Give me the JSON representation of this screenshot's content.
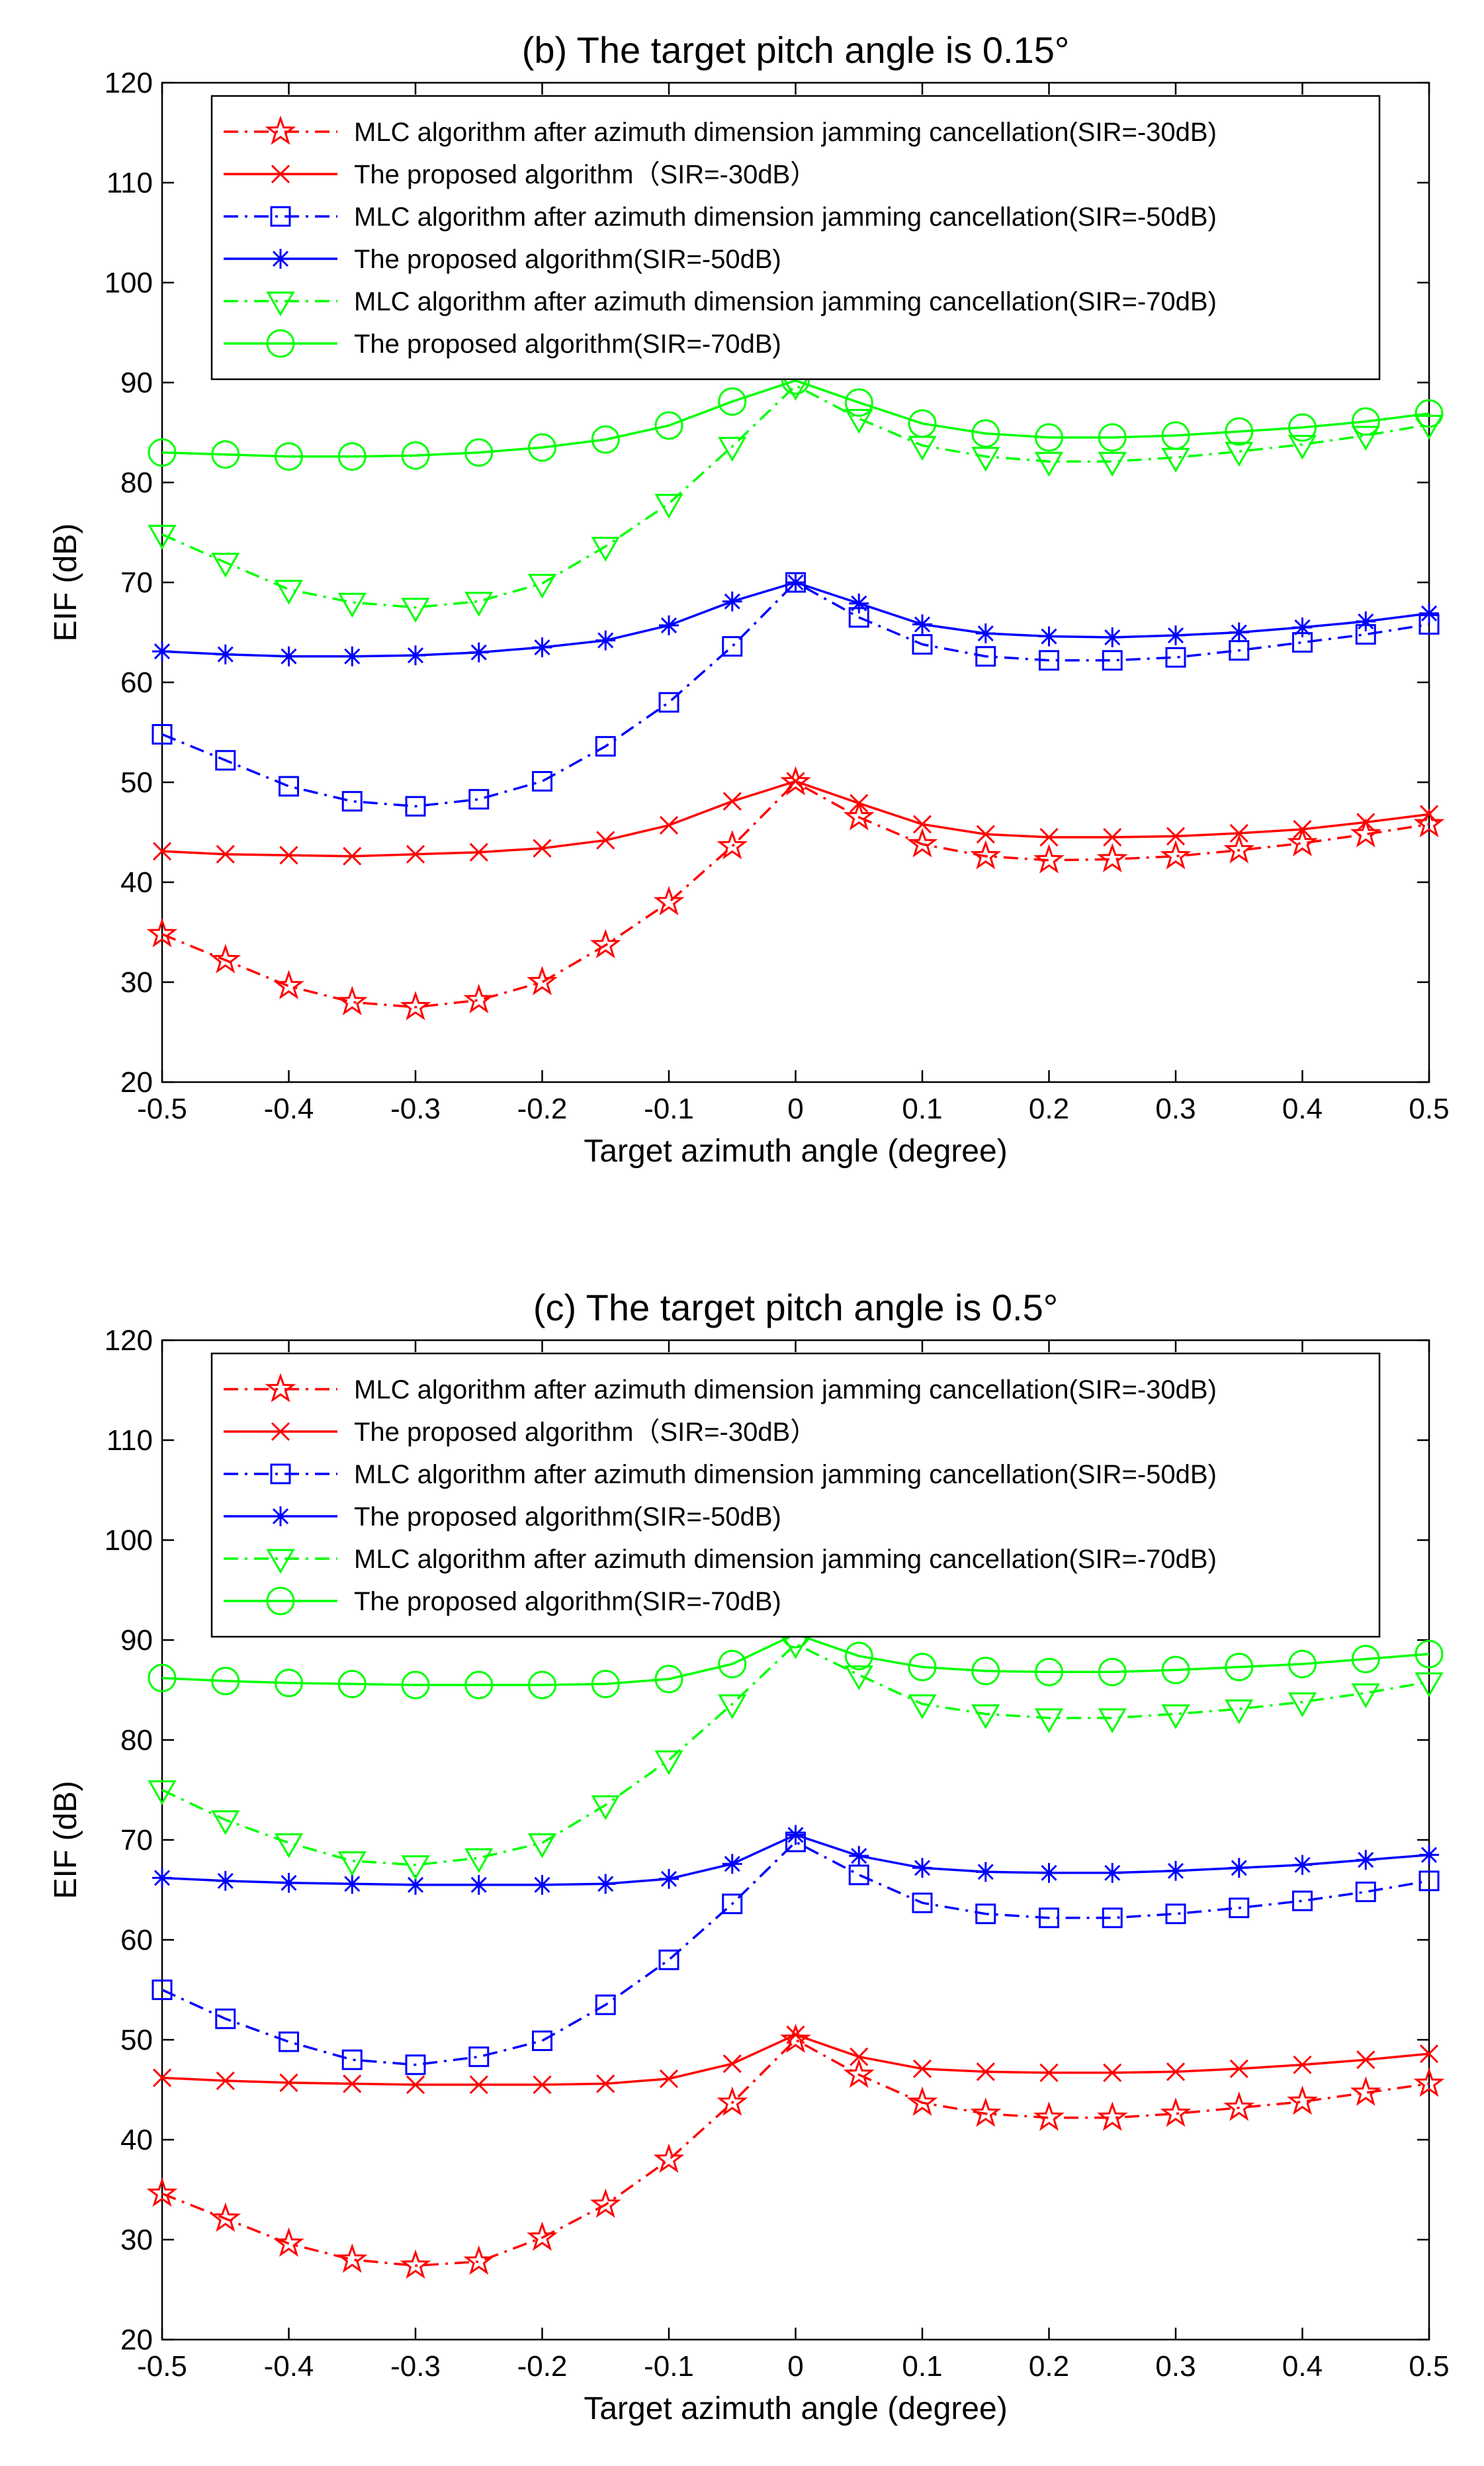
{
  "chart_data": [
    {
      "type": "line",
      "title": "(b) The target pitch angle is 0.15°",
      "xlabel": "Target azimuth angle (degree)",
      "ylabel": "EIF (dB)",
      "xlim": [
        -0.5,
        0.5
      ],
      "ylim": [
        20,
        120
      ],
      "grid": false,
      "legend_position": "top-left",
      "xticks": [
        -0.5,
        -0.4,
        -0.3,
        -0.2,
        -0.1,
        0,
        0.1,
        0.2,
        0.3,
        0.4,
        0.5
      ],
      "xtick_labels": [
        "-0.5",
        "-0.4",
        "-0.3",
        "-0.2",
        "-0.1",
        "0",
        "0.1",
        "0.2",
        "0.3",
        "0.4",
        "0.5"
      ],
      "yticks": [
        20,
        30,
        40,
        50,
        60,
        70,
        80,
        90,
        100,
        110,
        120
      ],
      "ytick_labels": [
        "20",
        "30",
        "40",
        "50",
        "60",
        "70",
        "80",
        "90",
        "100",
        "110",
        "120"
      ],
      "x": [
        -0.5,
        -0.45,
        -0.4,
        -0.35,
        -0.3,
        -0.25,
        -0.2,
        -0.15,
        -0.1,
        -0.05,
        0,
        0.05,
        0.1,
        0.15,
        0.2,
        0.25,
        0.3,
        0.35,
        0.4,
        0.45,
        0.5
      ],
      "series": [
        {
          "name": "MLC algorithm after azimuth dimension jamming cancellation(SIR=-30dB)",
          "color": "#ff0000",
          "line": "dashdot",
          "marker": "star",
          "values": [
            34.8,
            32.2,
            29.6,
            28.0,
            27.5,
            28.2,
            30.0,
            33.7,
            38.0,
            43.6,
            50.0,
            46.5,
            43.8,
            42.6,
            42.2,
            42.3,
            42.6,
            43.2,
            43.9,
            44.8,
            45.8
          ]
        },
        {
          "name": "The proposed algorithm（SIR=-30dB）",
          "color": "#ff0000",
          "line": "solid",
          "marker": "x",
          "values": [
            43.1,
            42.8,
            42.7,
            42.6,
            42.8,
            43.0,
            43.4,
            44.2,
            45.7,
            48.1,
            50.1,
            47.9,
            45.8,
            44.8,
            44.5,
            44.5,
            44.6,
            44.9,
            45.3,
            46.0,
            46.8
          ]
        },
        {
          "name": "MLC algorithm after azimuth dimension jamming cancellation(SIR=-50dB)",
          "color": "#0000ff",
          "line": "dashdot",
          "marker": "square",
          "values": [
            54.8,
            52.2,
            49.6,
            48.1,
            47.6,
            48.3,
            50.1,
            53.6,
            58.0,
            63.6,
            70.0,
            66.5,
            63.8,
            62.6,
            62.2,
            62.2,
            62.5,
            63.2,
            64.0,
            64.8,
            65.8
          ]
        },
        {
          "name": "The proposed algorithm(SIR=-50dB)",
          "color": "#0000ff",
          "line": "solid",
          "marker": "asterisk",
          "values": [
            63.1,
            62.8,
            62.6,
            62.6,
            62.7,
            63.0,
            63.5,
            64.2,
            65.7,
            68.1,
            70.0,
            67.9,
            65.8,
            64.9,
            64.6,
            64.5,
            64.7,
            65.0,
            65.5,
            66.1,
            66.9
          ]
        },
        {
          "name": "MLC algorithm after azimuth dimension jamming cancellation(SIR=-70dB)",
          "color": "#00ff00",
          "line": "dashdot",
          "marker": "triangle-down",
          "values": [
            74.8,
            72.0,
            69.3,
            68.0,
            67.5,
            68.1,
            69.9,
            73.6,
            77.9,
            83.6,
            89.7,
            86.4,
            83.7,
            82.6,
            82.1,
            82.1,
            82.5,
            83.1,
            83.8,
            84.7,
            85.8
          ]
        },
        {
          "name": "The proposed algorithm(SIR=-70dB)",
          "color": "#00ff00",
          "line": "solid",
          "marker": "circle",
          "values": [
            83.0,
            82.8,
            82.6,
            82.6,
            82.7,
            83.0,
            83.5,
            84.3,
            85.7,
            88.1,
            90.2,
            88.0,
            85.9,
            84.9,
            84.5,
            84.5,
            84.7,
            85.1,
            85.5,
            86.1,
            86.9
          ]
        }
      ]
    },
    {
      "type": "line",
      "title": "(c) The target pitch angle is 0.5°",
      "xlabel": "Target azimuth angle (degree)",
      "ylabel": "EIF (dB)",
      "xlim": [
        -0.5,
        0.5
      ],
      "ylim": [
        20,
        120
      ],
      "grid": false,
      "legend_position": "top-left",
      "xticks": [
        -0.5,
        -0.4,
        -0.3,
        -0.2,
        -0.1,
        0,
        0.1,
        0.2,
        0.3,
        0.4,
        0.5
      ],
      "xtick_labels": [
        "-0.5",
        "-0.4",
        "-0.3",
        "-0.2",
        "-0.1",
        "0",
        "0.1",
        "0.2",
        "0.3",
        "0.4",
        "0.5"
      ],
      "yticks": [
        20,
        30,
        40,
        50,
        60,
        70,
        80,
        90,
        100,
        110,
        120
      ],
      "ytick_labels": [
        "20",
        "30",
        "40",
        "50",
        "60",
        "70",
        "80",
        "90",
        "100",
        "110",
        "120"
      ],
      "x": [
        -0.5,
        -0.45,
        -0.4,
        -0.35,
        -0.3,
        -0.25,
        -0.2,
        -0.15,
        -0.1,
        -0.05,
        0,
        0.05,
        0.1,
        0.15,
        0.2,
        0.25,
        0.3,
        0.35,
        0.4,
        0.45,
        0.5
      ],
      "series": [
        {
          "name": "MLC algorithm after azimuth dimension jamming cancellation(SIR=-30dB)",
          "color": "#ff0000",
          "line": "dashdot",
          "marker": "star",
          "values": [
            34.6,
            32.1,
            29.6,
            28.0,
            27.4,
            27.8,
            30.2,
            33.5,
            38.0,
            43.7,
            50.0,
            46.5,
            43.7,
            42.6,
            42.2,
            42.2,
            42.6,
            43.2,
            43.8,
            44.7,
            45.6
          ]
        },
        {
          "name": "The proposed algorithm（SIR=-30dB）",
          "color": "#ff0000",
          "line": "solid",
          "marker": "x",
          "values": [
            46.2,
            45.9,
            45.7,
            45.6,
            45.5,
            45.5,
            45.5,
            45.6,
            46.1,
            47.6,
            50.5,
            48.3,
            47.1,
            46.8,
            46.7,
            46.7,
            46.8,
            47.1,
            47.5,
            48.0,
            48.6
          ]
        },
        {
          "name": "MLC algorithm after azimuth dimension jamming cancellation(SIR=-50dB)",
          "color": "#0000ff",
          "line": "dashdot",
          "marker": "square",
          "values": [
            55.0,
            52.1,
            49.8,
            48.0,
            47.5,
            48.3,
            49.9,
            53.5,
            58.0,
            63.6,
            69.8,
            66.5,
            63.7,
            62.6,
            62.2,
            62.2,
            62.6,
            63.2,
            63.9,
            64.8,
            65.9
          ]
        },
        {
          "name": "The proposed algorithm(SIR=-50dB)",
          "color": "#0000ff",
          "line": "solid",
          "marker": "asterisk",
          "values": [
            66.2,
            65.9,
            65.7,
            65.6,
            65.5,
            65.5,
            65.5,
            65.6,
            66.1,
            67.6,
            70.5,
            68.4,
            67.2,
            66.8,
            66.7,
            66.7,
            66.9,
            67.2,
            67.5,
            68.0,
            68.5
          ]
        },
        {
          "name": "MLC algorithm after azimuth dimension jamming cancellation(SIR=-70dB)",
          "color": "#00ff00",
          "line": "dashdot",
          "marker": "triangle-down",
          "values": [
            75.0,
            72.0,
            69.7,
            67.9,
            67.5,
            68.2,
            69.7,
            73.5,
            78.0,
            83.6,
            89.6,
            86.5,
            83.6,
            82.6,
            82.2,
            82.2,
            82.6,
            83.1,
            83.8,
            84.7,
            85.8
          ]
        },
        {
          "name": "The proposed algorithm(SIR=-70dB)",
          "color": "#00ff00",
          "line": "solid",
          "marker": "circle",
          "values": [
            86.2,
            85.9,
            85.7,
            85.6,
            85.5,
            85.5,
            85.5,
            85.6,
            86.1,
            87.6,
            90.6,
            88.4,
            87.3,
            86.9,
            86.8,
            86.8,
            87.0,
            87.3,
            87.6,
            88.1,
            88.6
          ]
        }
      ]
    }
  ]
}
